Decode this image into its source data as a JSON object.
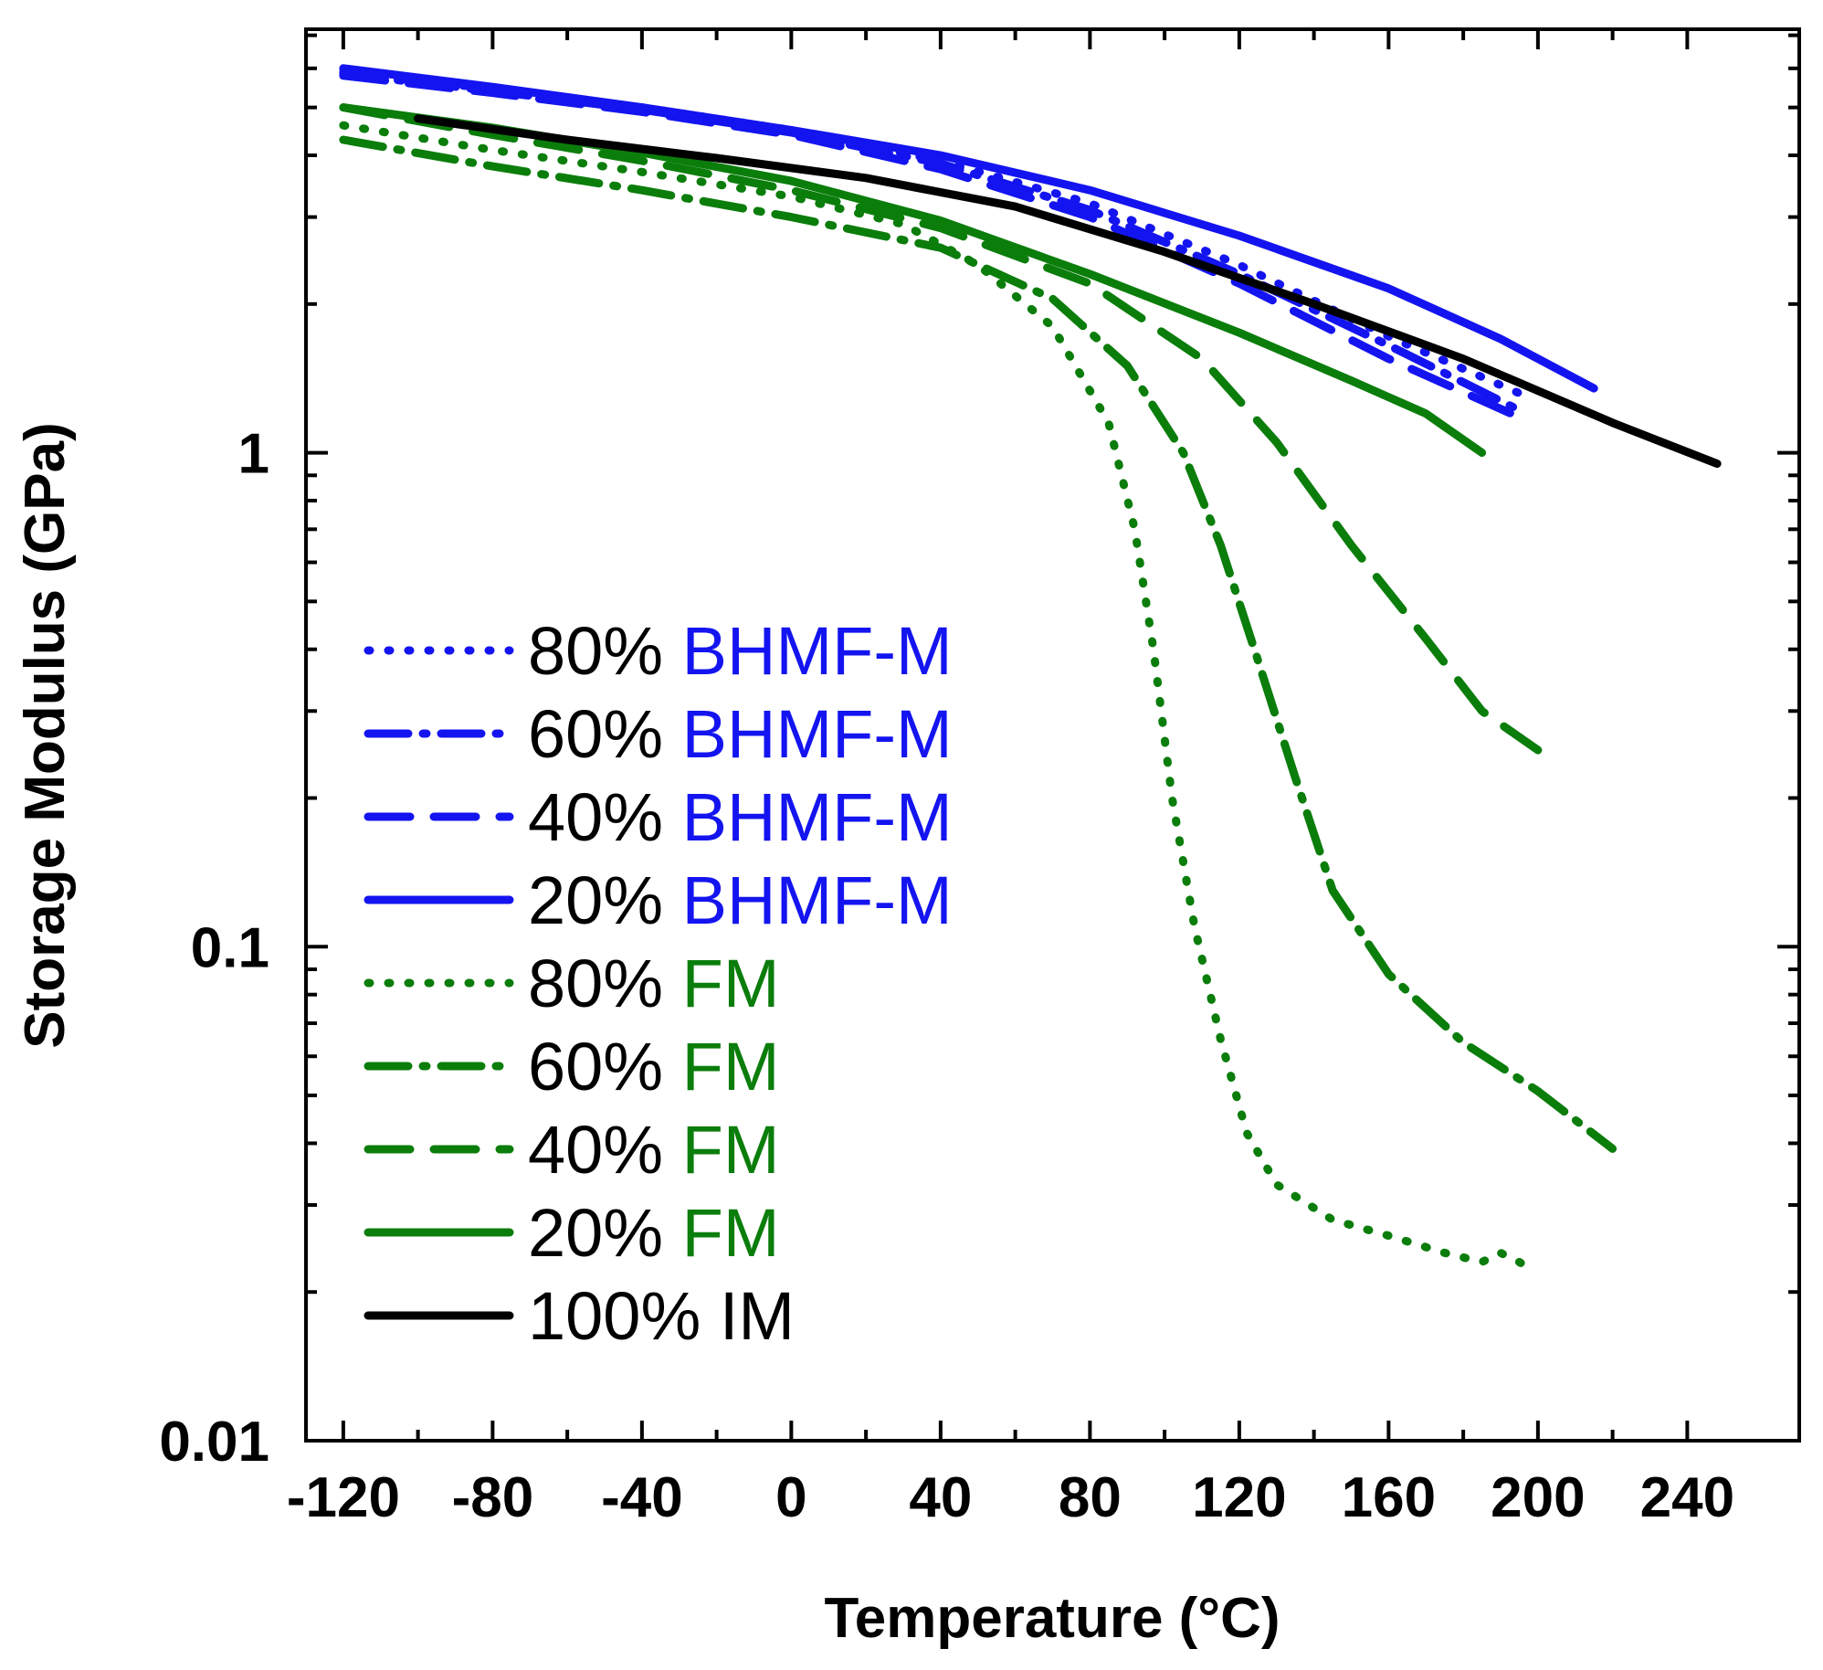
{
  "chart_data": {
    "type": "line",
    "title": "",
    "xlabel": "Temperature (°C)",
    "ylabel": "Storage Modulus (GPa)",
    "xscale": "linear",
    "yscale": "log",
    "xlim": [
      -130,
      270
    ],
    "ylim": [
      0.01,
      7.2
    ],
    "xticks": [
      -120,
      -80,
      -40,
      0,
      40,
      80,
      120,
      160,
      200,
      240
    ],
    "xtick_labels": [
      "-120",
      "-80",
      "-40",
      "0",
      "40",
      "80",
      "120",
      "160",
      "200",
      "240"
    ],
    "yticks": [
      0.01,
      0.1,
      1
    ],
    "ytick_labels": [
      "0.01",
      "0.1",
      "1"
    ],
    "grid": false,
    "legend_position": "center-left",
    "colors": {
      "blue": "#1414f0",
      "green": "#0b7d0b",
      "black": "#000000"
    },
    "series": [
      {
        "pct": "80%",
        "name": "BHMF-M",
        "color": "#1414f0",
        "style": "dotted",
        "x": [
          -120,
          -80,
          -40,
          0,
          40,
          80,
          120,
          160,
          197
        ],
        "y": [
          5.9,
          5.45,
          5.0,
          4.5,
          3.9,
          3.2,
          2.4,
          1.72,
          1.3
        ]
      },
      {
        "pct": "60%",
        "name": "BHMF-M",
        "color": "#1414f0",
        "style": "dashdot",
        "x": [
          -120,
          -80,
          -40,
          0,
          40,
          80,
          120,
          160,
          195
        ],
        "y": [
          5.85,
          5.4,
          4.95,
          4.45,
          3.85,
          3.1,
          2.3,
          1.65,
          1.22
        ]
      },
      {
        "pct": "40%",
        "name": "BHMF-M",
        "color": "#1414f0",
        "style": "dashed",
        "x": [
          -120,
          -80,
          -40,
          0,
          40,
          80,
          120,
          160,
          195
        ],
        "y": [
          5.8,
          5.35,
          4.9,
          4.4,
          3.75,
          3.0,
          2.2,
          1.55,
          1.18
        ]
      },
      {
        "pct": "20%",
        "name": "BHMF-M",
        "color": "#1414f0",
        "style": "solid",
        "x": [
          -120,
          -80,
          -40,
          0,
          40,
          80,
          120,
          160,
          190,
          215
        ],
        "y": [
          6.0,
          5.5,
          5.0,
          4.5,
          4.0,
          3.4,
          2.75,
          2.15,
          1.7,
          1.35
        ]
      },
      {
        "pct": "80%",
        "name": "FM",
        "color": "#0b7d0b",
        "style": "dotted",
        "x": [
          -120,
          -80,
          -40,
          0,
          30,
          50,
          70,
          85,
          92,
          97,
          102,
          108,
          115,
          122,
          130,
          145,
          160,
          175,
          185,
          190,
          195,
          199
        ],
        "y": [
          4.6,
          4.1,
          3.7,
          3.3,
          2.9,
          2.4,
          1.8,
          1.15,
          0.7,
          0.4,
          0.2,
          0.11,
          0.065,
          0.042,
          0.033,
          0.028,
          0.026,
          0.024,
          0.023,
          0.024,
          0.023,
          0.022
        ]
      },
      {
        "pct": "60%",
        "name": "FM",
        "color": "#0b7d0b",
        "style": "dashdot",
        "x": [
          -120,
          -80,
          -40,
          0,
          40,
          70,
          90,
          105,
          115,
          125,
          135,
          145,
          160,
          180,
          200,
          220
        ],
        "y": [
          4.3,
          3.8,
          3.4,
          3.0,
          2.6,
          2.05,
          1.5,
          1.0,
          0.65,
          0.38,
          0.22,
          0.13,
          0.088,
          0.064,
          0.051,
          0.039
        ]
      },
      {
        "pct": "40%",
        "name": "FM",
        "color": "#0b7d0b",
        "style": "dashed",
        "x": [
          -120,
          -80,
          -40,
          0,
          40,
          80,
          110,
          130,
          150,
          170,
          185,
          200
        ],
        "y": [
          5.0,
          4.4,
          3.9,
          3.4,
          2.85,
          2.2,
          1.55,
          1.05,
          0.65,
          0.42,
          0.3,
          0.25
        ]
      },
      {
        "pct": "20%",
        "name": "FM",
        "color": "#0b7d0b",
        "style": "solid",
        "x": [
          -120,
          -80,
          -40,
          0,
          40,
          80,
          120,
          150,
          170,
          185
        ],
        "y": [
          5.0,
          4.55,
          4.05,
          3.55,
          2.95,
          2.3,
          1.75,
          1.4,
          1.2,
          1.0
        ]
      },
      {
        "pct": "100%",
        "name": "IM",
        "color": "#000000",
        "style": "solid",
        "x": [
          -100,
          -60,
          -20,
          20,
          60,
          100,
          140,
          180,
          220,
          248
        ],
        "y": [
          4.75,
          4.3,
          3.95,
          3.6,
          3.15,
          2.55,
          2.0,
          1.55,
          1.15,
          0.95
        ]
      }
    ]
  }
}
